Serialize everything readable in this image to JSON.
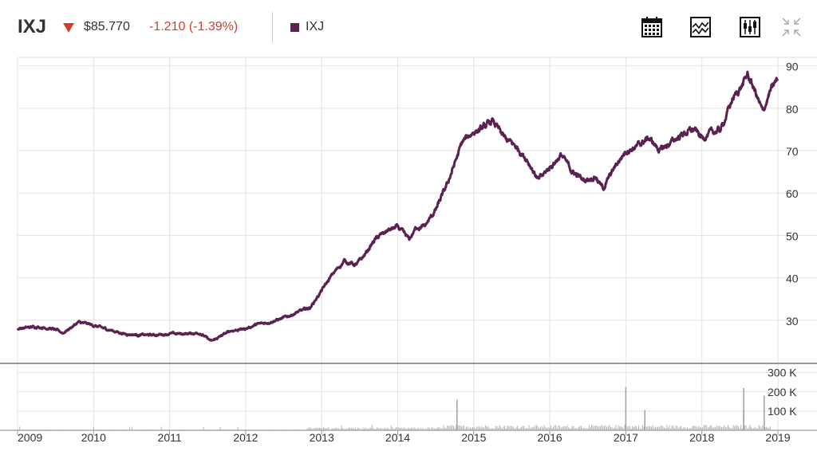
{
  "header": {
    "ticker": "IXJ",
    "price": "$85.770",
    "change": "-1.210 (-1.39%)",
    "legend_label": "IXJ",
    "series_color": "#5b2150",
    "down_color": "#d23f31",
    "tools": [
      "calendar-icon",
      "chart-type-icon",
      "indicators-icon",
      "expand-icon"
    ]
  },
  "chart_data": {
    "type": "line",
    "series": [
      {
        "name": "IXJ",
        "x": [
          2009.0,
          2009.25,
          2009.45,
          2009.6,
          2009.8,
          2009.95,
          2010.15,
          2010.4,
          2010.6,
          2010.8,
          2011.0,
          2011.2,
          2011.4,
          2011.55,
          2011.65,
          2011.8,
          2012.0,
          2012.15,
          2012.3,
          2012.5,
          2012.7,
          2012.85,
          2013.0,
          2013.15,
          2013.3,
          2013.45,
          2013.55,
          2013.7,
          2013.85,
          2014.0,
          2014.15,
          2014.25,
          2014.35,
          2014.5,
          2014.65,
          2014.75,
          2014.85,
          2015.0,
          2015.1,
          2015.25,
          2015.4,
          2015.55,
          2015.7,
          2015.85,
          2016.0,
          2016.15,
          2016.3,
          2016.45,
          2016.6,
          2016.7,
          2016.85,
          2017.0,
          2017.15,
          2017.3,
          2017.45,
          2017.6,
          2017.75,
          2017.9,
          2018.0,
          2018.1,
          2018.25,
          2018.4,
          2018.55,
          2018.6,
          2018.7,
          2018.8,
          2018.9,
          2019.0
        ],
        "y": [
          28,
          28.5,
          28,
          27,
          29.5,
          29,
          28,
          26.8,
          26.5,
          26.5,
          26.8,
          26.8,
          27,
          25,
          26,
          27.5,
          28,
          29,
          29.5,
          30.5,
          32,
          33,
          37,
          41,
          44,
          43,
          45,
          49,
          51,
          52,
          49,
          52,
          52,
          56,
          62,
          67,
          72,
          74.5,
          75,
          77,
          73,
          71,
          68,
          63,
          66,
          69,
          65,
          63,
          64,
          61,
          66,
          70,
          71,
          73,
          70,
          72,
          74,
          75,
          73,
          74,
          75,
          82,
          86,
          88,
          84,
          79,
          84,
          87
        ],
        "values_by_date": "y values are index prices; x values are fractional years"
      }
    ],
    "volume_series": {
      "name": "Volume",
      "spikes": [
        {
          "x": 2014.78,
          "value": 160000
        },
        {
          "x": 2017.0,
          "value": 225000
        },
        {
          "x": 2017.25,
          "value": 105000
        },
        {
          "x": 2018.55,
          "value": 220000
        },
        {
          "x": 2018.82,
          "value": 180000
        },
        {
          "x": 2018.55,
          "value": 100000
        }
      ]
    },
    "x_tick_labels": [
      "2009",
      "2010",
      "2011",
      "2012",
      "2013",
      "2014",
      "2015",
      "2016",
      "2017",
      "2018",
      "2019"
    ],
    "y_tick_labels": [
      "30",
      "40",
      "50",
      "60",
      "70",
      "80",
      "90"
    ],
    "volume_tick_labels": [
      "100 K",
      "200 K",
      "300 K"
    ],
    "xlim": [
      2009.0,
      2019.0
    ],
    "ylim": [
      20,
      92
    ],
    "volume_ylim": [
      0,
      340000
    ],
    "grid": true
  }
}
